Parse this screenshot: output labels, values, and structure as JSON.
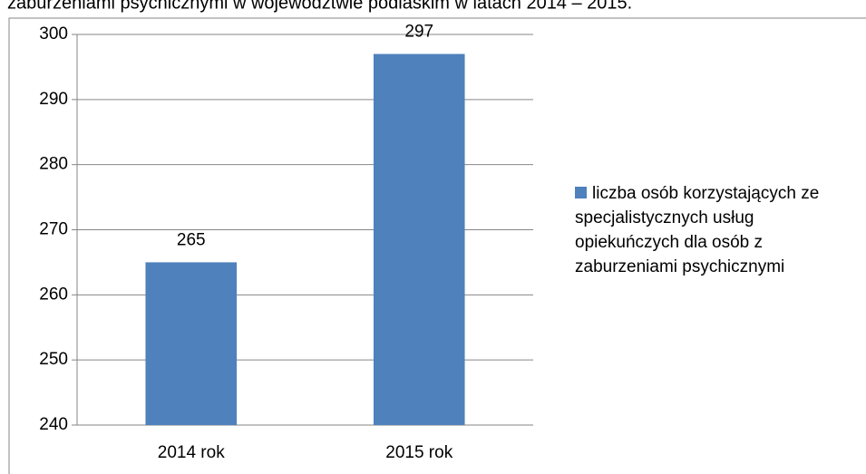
{
  "chart_data": {
    "type": "bar",
    "title": "zaburzeniami psychicznymi w województwie podlaskim w latach 2014 – 2015.",
    "categories": [
      "2014 rok",
      "2015 rok"
    ],
    "series": [
      {
        "name": "liczba osób korzystających ze specjalistycznych usług opiekuńczych dla osób z zaburzeniami psychicznymi",
        "color": "#4f81bd",
        "values": [
          265,
          297
        ]
      }
    ],
    "ylim": [
      240,
      300
    ],
    "yticks": [
      240,
      250,
      260,
      270,
      280,
      290,
      300
    ],
    "grid": true,
    "legend": "right"
  }
}
